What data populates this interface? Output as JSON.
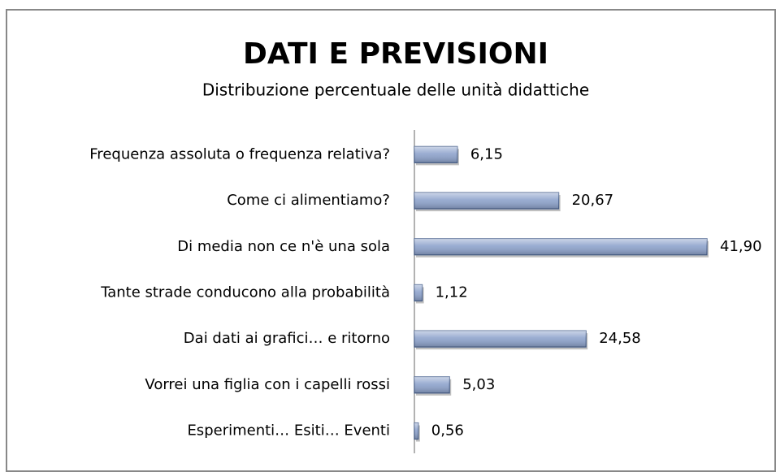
{
  "chart_data": {
    "type": "bar",
    "orientation": "horizontal",
    "title": "DATI E PREVISIONI",
    "subtitle": "Distribuzione percentuale delle unità didattiche",
    "categories": [
      "Frequenza assoluta o frequenza relativa?",
      "Come ci alimentiamo?",
      "Di media non ce n'è una sola",
      "Tante strade conducono alla probabilità",
      "Dai dati ai grafici… e ritorno",
      "Vorrei una figlia con i capelli rossi",
      "Esperimenti… Esiti… Eventi"
    ],
    "values": [
      6.15,
      20.67,
      41.9,
      1.12,
      24.58,
      5.03,
      0.56
    ],
    "value_labels": [
      "6,15",
      "20,67",
      "41,90",
      "1,12",
      "24,58",
      "5,03",
      "0,56"
    ],
    "color": "#8ea3cc"
  }
}
